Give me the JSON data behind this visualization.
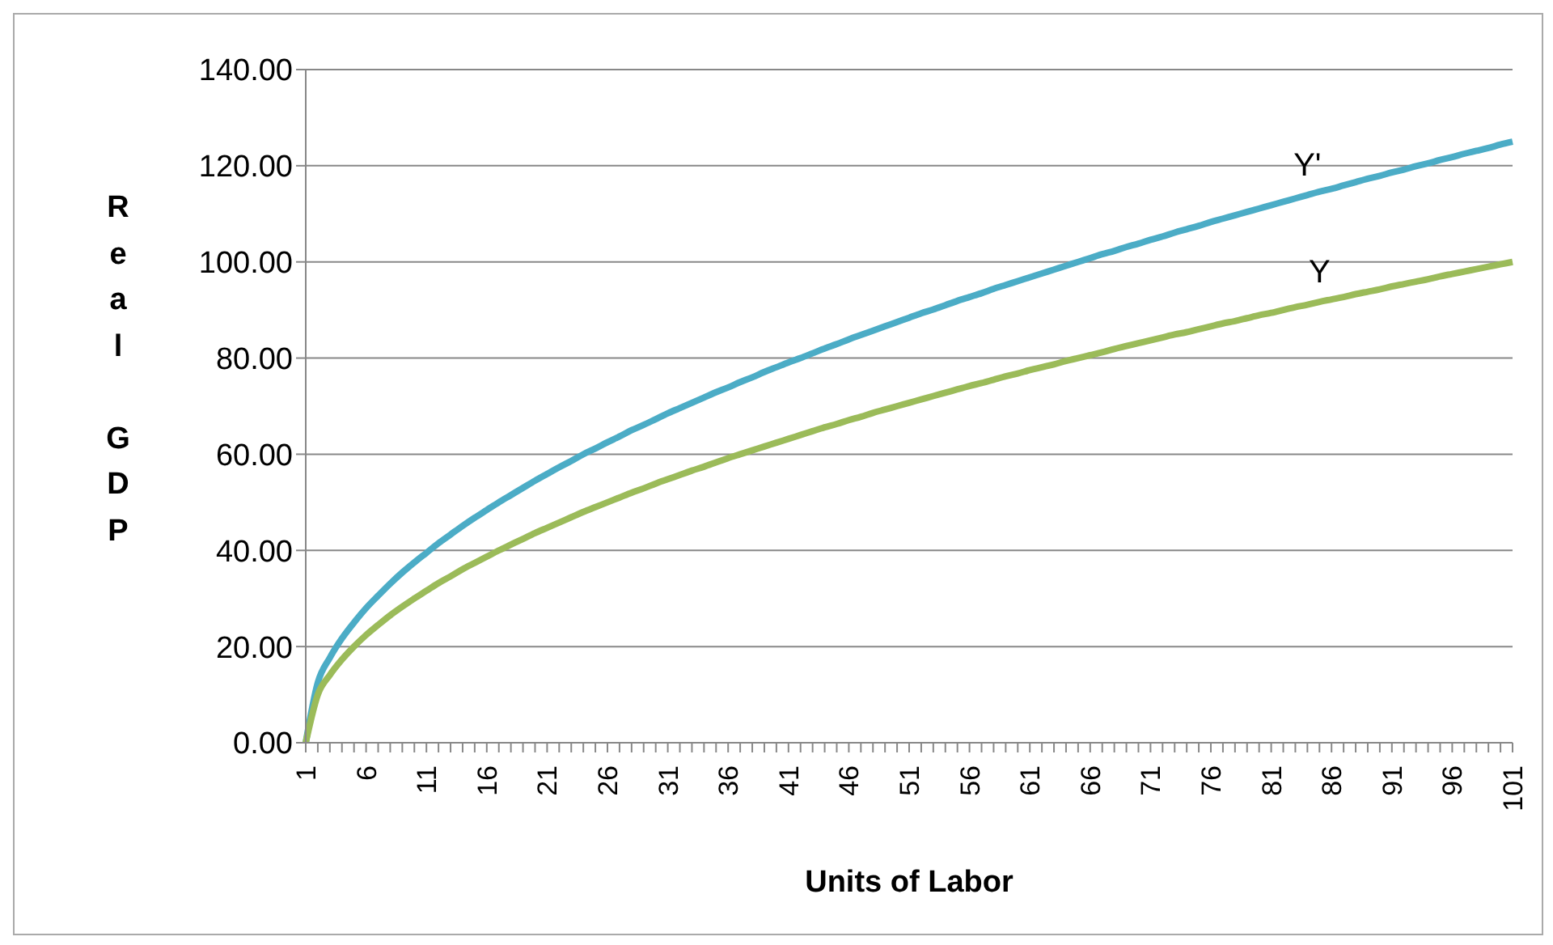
{
  "chart_data": {
    "type": "line",
    "xlabel": "Units of Labor",
    "ylabel": "Real GDP",
    "categories": [
      "1",
      null,
      null,
      null,
      null,
      "6",
      null,
      null,
      null,
      null,
      "11",
      null,
      null,
      null,
      null,
      "16",
      null,
      null,
      null,
      null,
      "21",
      null,
      null,
      null,
      null,
      "26",
      null,
      null,
      null,
      null,
      "31",
      null,
      null,
      null,
      null,
      "36",
      null,
      null,
      null,
      null,
      "41",
      null,
      null,
      null,
      null,
      "46",
      null,
      null,
      null,
      null,
      "51",
      null,
      null,
      null,
      null,
      "56",
      null,
      null,
      null,
      null,
      "61",
      null,
      null,
      null,
      null,
      "66",
      null,
      null,
      null,
      null,
      "71",
      null,
      null,
      null,
      null,
      "76",
      null,
      null,
      null,
      null,
      "81",
      null,
      null,
      null,
      null,
      "86",
      null,
      null,
      null,
      null,
      "91",
      null,
      null,
      null,
      null,
      "96",
      null,
      null,
      null,
      null,
      "101"
    ],
    "series": [
      {
        "name": "Y'",
        "color": "#4bacc6",
        "values": [
          0,
          12.5,
          17.7,
          21.7,
          25,
          28,
          30.6,
          33.1,
          35.4,
          37.5,
          39.5,
          41.5,
          43.3,
          45.1,
          46.8,
          48.4,
          50,
          51.5,
          53,
          54.5,
          55.9,
          57.3,
          58.6,
          60,
          61.2,
          62.5,
          63.7,
          65,
          66.1,
          67.3,
          68.5,
          69.6,
          70.7,
          71.8,
          72.9,
          73.9,
          75,
          76,
          77.1,
          78.1,
          79.1,
          80,
          81,
          82,
          82.9,
          83.9,
          84.8,
          85.7,
          86.6,
          87.5,
          88.4,
          89.3,
          90.1,
          91,
          91.9,
          92.7,
          93.5,
          94.4,
          95.2,
          96,
          96.8,
          97.6,
          98.4,
          99.2,
          100,
          100.8,
          101.6,
          102.3,
          103.1,
          103.8,
          104.6,
          105.3,
          106.1,
          106.8,
          107.5,
          108.3,
          109,
          109.7,
          110.4,
          111.1,
          111.8,
          112.5,
          113.2,
          113.9,
          114.6,
          115.2,
          115.9,
          116.6,
          117.3,
          117.9,
          118.6,
          119.2,
          119.9,
          120.5,
          121.2,
          121.8,
          122.5,
          123.1,
          123.7,
          124.4,
          125
        ]
      },
      {
        "name": "Y",
        "color": "#9bbb59",
        "values": [
          0,
          10,
          14.1,
          17.3,
          20,
          22.4,
          24.5,
          26.5,
          28.3,
          30,
          31.6,
          33.2,
          34.6,
          36.1,
          37.4,
          38.7,
          40,
          41.2,
          42.4,
          43.6,
          44.7,
          45.8,
          46.9,
          48,
          49,
          50,
          51,
          52,
          52.9,
          53.9,
          54.8,
          55.7,
          56.6,
          57.4,
          58.3,
          59.2,
          60,
          60.8,
          61.6,
          62.4,
          63.2,
          64,
          64.8,
          65.6,
          66.3,
          67.1,
          67.8,
          68.6,
          69.3,
          70,
          70.7,
          71.4,
          72.1,
          72.8,
          73.5,
          74.2,
          74.8,
          75.5,
          76.2,
          76.8,
          77.5,
          78.1,
          78.7,
          79.4,
          80,
          80.6,
          81.2,
          81.9,
          82.5,
          83.1,
          83.7,
          84.3,
          84.9,
          85.4,
          86,
          86.6,
          87.2,
          87.7,
          88.3,
          88.9,
          89.4,
          90,
          90.6,
          91.1,
          91.7,
          92.2,
          92.7,
          93.3,
          93.8,
          94.3,
          94.9,
          95.4,
          95.9,
          96.4,
          97,
          97.5,
          98,
          98.5,
          99,
          99.5,
          100
        ]
      }
    ],
    "ylim": [
      0,
      140
    ],
    "yticks": [
      {
        "value": 0,
        "label": "0.00"
      },
      {
        "value": 20,
        "label": "20.00"
      },
      {
        "value": 40,
        "label": "40.00"
      },
      {
        "value": 60,
        "label": "60.00"
      },
      {
        "value": 80,
        "label": "80.00"
      },
      {
        "value": 100,
        "label": "100.00"
      },
      {
        "value": 120,
        "label": "120.00"
      },
      {
        "value": 140,
        "label": "140.00"
      }
    ],
    "grid": "y",
    "legend": false,
    "marker": "none",
    "line_style": "solid"
  }
}
